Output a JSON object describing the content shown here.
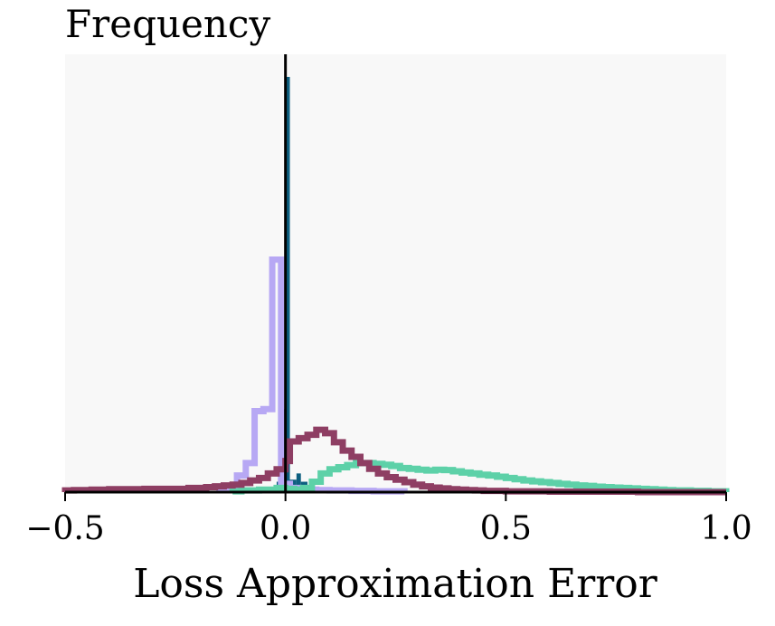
{
  "chart_data": {
    "type": "histogram",
    "xlabel": "Loss Approximation Error",
    "ylabel": "Frequency",
    "xlim": [
      -0.5,
      1.0
    ],
    "ylim": [
      0,
      1
    ],
    "xticks": [
      -0.5,
      0.0,
      0.5,
      1.0
    ],
    "xtick_labels": [
      "−0.5",
      "0.0",
      "0.5",
      "1.0"
    ],
    "yticks": [],
    "grid": false,
    "legend": "none",
    "background": "#f8f8f8",
    "vline_x": 0.0,
    "bin_width": 0.02,
    "series": [
      {
        "style": "filled",
        "color": "#0d5f80",
        "edges": [
          -0.04,
          -0.02,
          -0.015,
          -0.01,
          0.0,
          0.01,
          0.025,
          0.035,
          0.05,
          0.07
        ],
        "values": [
          0.005,
          0.025,
          0.035,
          0.2,
          1.0,
          0.03,
          0.045,
          0.025,
          0.005
        ]
      },
      {
        "style": "step",
        "color": "#b7a8f4",
        "edges": [
          -0.15,
          -0.13,
          -0.11,
          -0.09,
          -0.07,
          -0.05,
          -0.03,
          -0.01,
          0.01,
          0.03,
          0.05,
          0.07,
          0.1,
          0.15,
          0.2,
          0.27
        ],
        "values": [
          0.005,
          0.015,
          0.04,
          0.07,
          0.195,
          0.2,
          0.56,
          0.02,
          0.01,
          0.008,
          0.006,
          0.005,
          0.004,
          0.003,
          0.002
        ]
      },
      {
        "style": "step",
        "color": "#5dd1a8",
        "edges": [
          -0.12,
          -0.1,
          -0.06,
          -0.02,
          0.0,
          0.02,
          0.04,
          0.06,
          0.08,
          0.1,
          0.12,
          0.14,
          0.16,
          0.18,
          0.2,
          0.22,
          0.24,
          0.26,
          0.28,
          0.3,
          0.32,
          0.34,
          0.36,
          0.38,
          0.4,
          0.42,
          0.44,
          0.46,
          0.48,
          0.5,
          0.52,
          0.54,
          0.56,
          0.58,
          0.6,
          0.62,
          0.64,
          0.66,
          0.68,
          0.7,
          0.72,
          0.74,
          0.76,
          0.78,
          0.8,
          0.82,
          0.84,
          0.86,
          0.88,
          0.9,
          0.92,
          0.94,
          0.96,
          0.98,
          1.0
        ],
        "values": [
          0.002,
          0.004,
          0.006,
          0.01,
          0.008,
          0.006,
          0.01,
          0.025,
          0.045,
          0.055,
          0.06,
          0.065,
          0.07,
          0.07,
          0.068,
          0.066,
          0.063,
          0.058,
          0.056,
          0.054,
          0.052,
          0.054,
          0.053,
          0.05,
          0.047,
          0.045,
          0.042,
          0.04,
          0.037,
          0.034,
          0.031,
          0.028,
          0.026,
          0.024,
          0.022,
          0.02,
          0.018,
          0.016,
          0.015,
          0.013,
          0.012,
          0.011,
          0.01,
          0.009,
          0.008,
          0.007,
          0.006,
          0.005,
          0.004,
          0.004,
          0.003,
          0.003,
          0.002,
          0.002
        ]
      },
      {
        "style": "step",
        "color": "#8e3e63",
        "edges": [
          -0.5,
          -0.48,
          -0.46,
          -0.44,
          -0.42,
          -0.4,
          -0.38,
          -0.36,
          -0.34,
          -0.32,
          -0.3,
          -0.28,
          -0.26,
          -0.24,
          -0.22,
          -0.2,
          -0.18,
          -0.16,
          -0.14,
          -0.12,
          -0.1,
          -0.08,
          -0.06,
          -0.04,
          -0.02,
          0.0,
          0.01,
          0.03,
          0.05,
          0.07,
          0.09,
          0.11,
          0.13,
          0.15,
          0.17,
          0.19,
          0.21,
          0.23,
          0.25,
          0.27,
          0.29,
          0.31,
          0.33,
          0.35,
          0.37,
          0.39,
          0.41,
          0.43,
          0.45,
          0.5,
          0.6,
          0.8,
          1.0
        ],
        "values": [
          0.004,
          0.005,
          0.005,
          0.006,
          0.006,
          0.007,
          0.007,
          0.007,
          0.007,
          0.008,
          0.008,
          0.008,
          0.008,
          0.008,
          0.01,
          0.01,
          0.012,
          0.014,
          0.016,
          0.018,
          0.022,
          0.028,
          0.034,
          0.045,
          0.055,
          0.075,
          0.122,
          0.13,
          0.138,
          0.15,
          0.142,
          0.12,
          0.1,
          0.085,
          0.07,
          0.056,
          0.045,
          0.036,
          0.03,
          0.024,
          0.018,
          0.014,
          0.011,
          0.009,
          0.007,
          0.006,
          0.005,
          0.004,
          0.003,
          0.002,
          0.001,
          0.0
        ]
      }
    ]
  }
}
